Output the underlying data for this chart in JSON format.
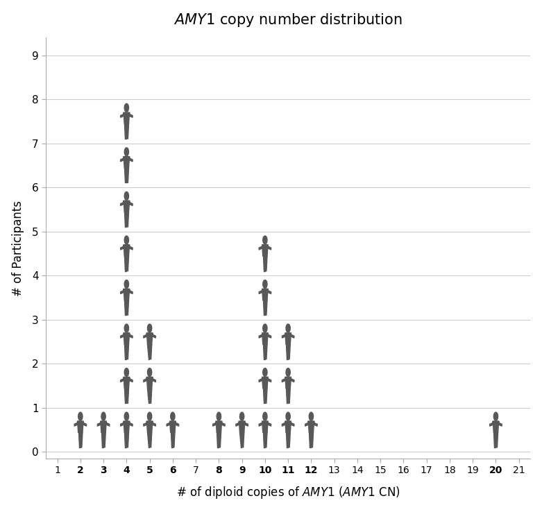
{
  "title": "AMY1 copy number distribution",
  "ylabel": "# of Participants",
  "x_ticks": [
    1,
    2,
    3,
    4,
    5,
    6,
    7,
    8,
    9,
    10,
    11,
    12,
    13,
    14,
    15,
    16,
    17,
    18,
    19,
    20,
    21
  ],
  "x_bold": [
    2,
    3,
    4,
    5,
    6,
    8,
    9,
    10,
    11,
    12,
    20
  ],
  "xlim": [
    0.5,
    21.5
  ],
  "ylim": [
    -0.15,
    9.4
  ],
  "y_ticks": [
    0,
    1,
    2,
    3,
    4,
    5,
    6,
    7,
    8,
    9
  ],
  "data": {
    "2": 1,
    "3": 1,
    "4": 8,
    "5": 3,
    "6": 1,
    "8": 1,
    "9": 1,
    "10": 5,
    "11": 3,
    "12": 1,
    "20": 1
  },
  "icon_color": "#585858",
  "bg_color": "#ffffff",
  "grid_color": "#cccccc",
  "figure_size": [
    7.81,
    7.38
  ],
  "dpi": 100
}
